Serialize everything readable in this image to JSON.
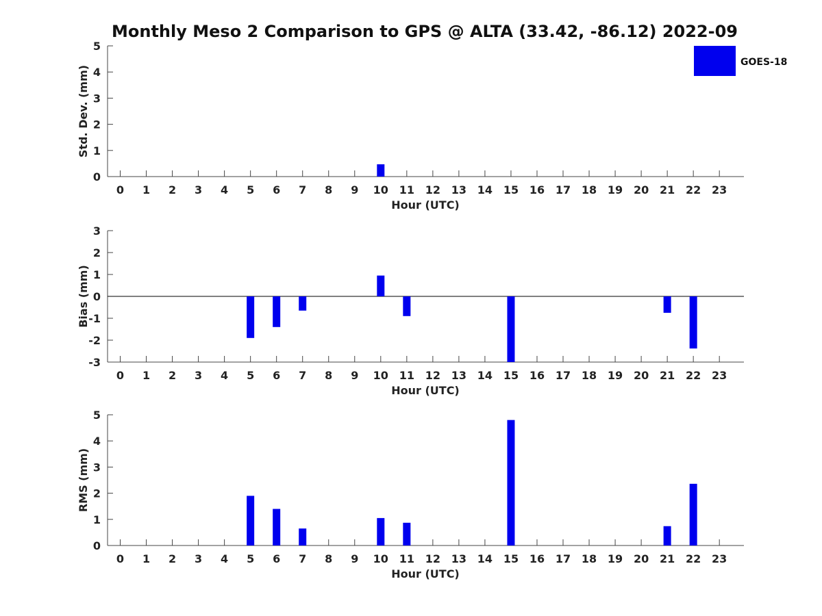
{
  "title": "Monthly Meso 2 Comparison to GPS @ ALTA (33.42, -86.12) 2022-09",
  "legend": {
    "label": "GOES-18",
    "color": "#0000ee"
  },
  "chart_data": [
    {
      "type": "bar",
      "ylabel": "Std. Dev. (mm)",
      "xlabel": "Hour (UTC)",
      "ylim": [
        0,
        5
      ],
      "yticks": [
        0,
        1,
        2,
        3,
        4,
        5
      ],
      "categories": [
        "0",
        "1",
        "2",
        "3",
        "4",
        "5",
        "6",
        "7",
        "8",
        "9",
        "10",
        "11",
        "12",
        "13",
        "14",
        "15",
        "16",
        "17",
        "18",
        "19",
        "20",
        "21",
        "22",
        "23"
      ],
      "series": [
        {
          "name": "GOES-18",
          "values": [
            null,
            null,
            null,
            null,
            null,
            null,
            null,
            null,
            null,
            null,
            0.47,
            null,
            null,
            null,
            null,
            null,
            null,
            null,
            null,
            null,
            null,
            null,
            null,
            null
          ]
        }
      ],
      "zero_line": false
    },
    {
      "type": "bar",
      "ylabel": "Bias (mm)",
      "xlabel": "Hour (UTC)",
      "ylim": [
        -3,
        3
      ],
      "yticks": [
        -3,
        -2,
        -1,
        0,
        1,
        2,
        3
      ],
      "categories": [
        "0",
        "1",
        "2",
        "3",
        "4",
        "5",
        "6",
        "7",
        "8",
        "9",
        "10",
        "11",
        "12",
        "13",
        "14",
        "15",
        "16",
        "17",
        "18",
        "19",
        "20",
        "21",
        "22",
        "23"
      ],
      "series": [
        {
          "name": "GOES-18",
          "values": [
            null,
            null,
            null,
            null,
            null,
            -1.9,
            -1.4,
            -0.65,
            null,
            null,
            0.95,
            -0.9,
            null,
            null,
            null,
            -3.0,
            null,
            null,
            null,
            null,
            null,
            -0.75,
            -2.38,
            null
          ]
        }
      ],
      "zero_line": true
    },
    {
      "type": "bar",
      "ylabel": "RMS (mm)",
      "xlabel": "Hour (UTC)",
      "ylim": [
        0,
        5
      ],
      "yticks": [
        0,
        1,
        2,
        3,
        4,
        5
      ],
      "categories": [
        "0",
        "1",
        "2",
        "3",
        "4",
        "5",
        "6",
        "7",
        "8",
        "9",
        "10",
        "11",
        "12",
        "13",
        "14",
        "15",
        "16",
        "17",
        "18",
        "19",
        "20",
        "21",
        "22",
        "23"
      ],
      "series": [
        {
          "name": "GOES-18",
          "values": [
            null,
            null,
            null,
            null,
            null,
            1.9,
            1.4,
            0.65,
            null,
            null,
            1.05,
            0.87,
            null,
            null,
            null,
            4.8,
            null,
            null,
            null,
            null,
            null,
            0.74,
            2.36,
            null
          ]
        }
      ],
      "zero_line": false
    }
  ]
}
